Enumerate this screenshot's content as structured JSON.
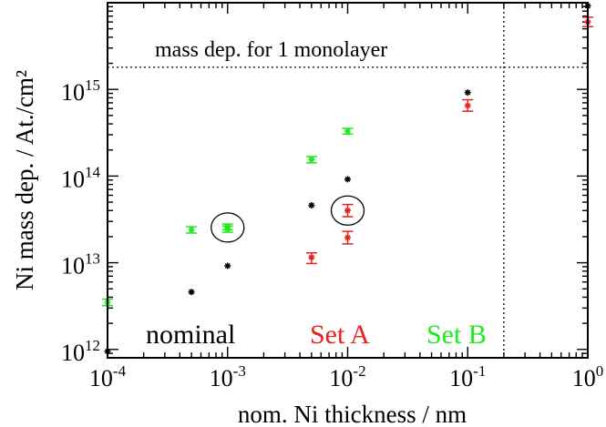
{
  "chart_data": {
    "type": "scatter",
    "xscale": "log",
    "yscale": "log",
    "xlim": [
      0.0001,
      1
    ],
    "ylim": [
      800000000000,
      10000000000000000
    ],
    "xlabel": "nom. Ni thickness / nm",
    "ylabel": "Ni mass dep. / At./cm²",
    "x_ticks": [
      {
        "value": 0.0001,
        "base": "10",
        "exp": "-4"
      },
      {
        "value": 0.001,
        "base": "10",
        "exp": "-3"
      },
      {
        "value": 0.01,
        "base": "10",
        "exp": "-2"
      },
      {
        "value": 0.1,
        "base": "10",
        "exp": "-1"
      },
      {
        "value": 1,
        "base": "10",
        "exp": "0"
      }
    ],
    "y_ticks": [
      {
        "value": 1000000000000,
        "base": "10",
        "exp": "12"
      },
      {
        "value": 10000000000000,
        "base": "10",
        "exp": "13"
      },
      {
        "value": 100000000000000,
        "base": "10",
        "exp": "14"
      },
      {
        "value": 1000000000000000,
        "base": "10",
        "exp": "15"
      }
    ],
    "reference_lines": {
      "monolayer_y": 1800000000000000,
      "monolayer_label": "mass dep. for 1 monolayer",
      "vertical_x": 0.2
    },
    "series": [
      {
        "name": "nominal",
        "color": "#000000",
        "points": [
          {
            "x": 0.0001,
            "y": 950000000000
          },
          {
            "x": 0.0005,
            "y": 4600000000000
          },
          {
            "x": 0.001,
            "y": 9200000000000
          },
          {
            "x": 0.005,
            "y": 46000000000000
          },
          {
            "x": 0.01,
            "y": 92000000000000
          },
          {
            "x": 0.1,
            "y": 920000000000000
          },
          {
            "x": 1,
            "y": 9200000000000000
          }
        ]
      },
      {
        "name": "Set A",
        "color": "#e8211d",
        "points": [
          {
            "x": 0.005,
            "y": 11500000000000,
            "err_lo": 9800000000000,
            "err_hi": 13000000000000
          },
          {
            "x": 0.01,
            "y": 19500000000000,
            "err_lo": 16500000000000,
            "err_hi": 23000000000000
          },
          {
            "x": 0.01,
            "y": 40000000000000,
            "err_lo": 34000000000000,
            "err_hi": 47000000000000
          },
          {
            "x": 0.1,
            "y": 650000000000000,
            "err_lo": 560000000000000,
            "err_hi": 760000000000000
          },
          {
            "x": 1,
            "y": 6000000000000000,
            "err_lo": 5300000000000000,
            "err_hi": 6800000000000000
          }
        ]
      },
      {
        "name": "Set B",
        "color": "#22e81e",
        "points": [
          {
            "x": 0.0001,
            "y": 3500000000000,
            "err_lo": 3200000000000,
            "err_hi": 3800000000000
          },
          {
            "x": 0.0005,
            "y": 24000000000000,
            "err_lo": 22000000000000,
            "err_hi": 26000000000000
          },
          {
            "x": 0.001,
            "y": 24500000000000,
            "err_lo": 22500000000000,
            "err_hi": 26500000000000
          },
          {
            "x": 0.001,
            "y": 26000000000000,
            "err_lo": 24000000000000,
            "err_hi": 28000000000000
          },
          {
            "x": 0.005,
            "y": 155000000000000,
            "err_lo": 142000000000000,
            "err_hi": 168000000000000
          },
          {
            "x": 0.01,
            "y": 330000000000000,
            "err_lo": 305000000000000,
            "err_hi": 355000000000000
          }
        ]
      }
    ],
    "highlight_circles": [
      {
        "x": 0.001,
        "y": 25500000000000
      },
      {
        "x": 0.01,
        "y": 40000000000000
      }
    ]
  }
}
